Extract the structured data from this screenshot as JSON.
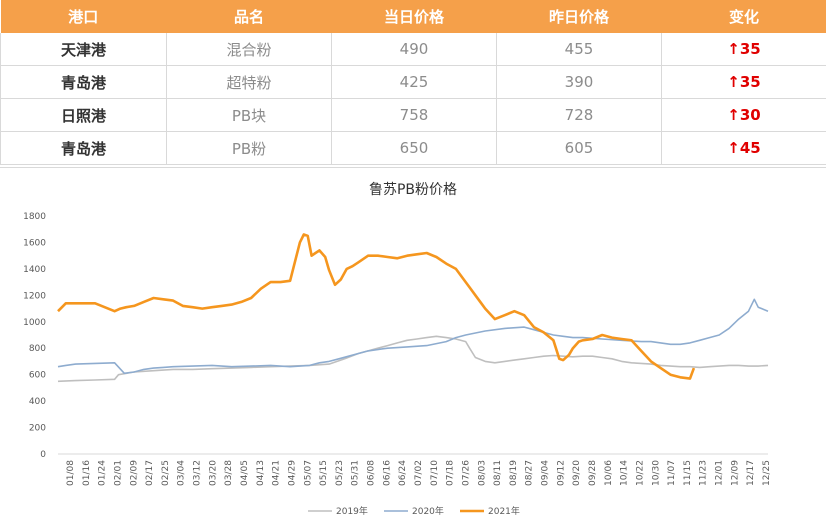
{
  "table": {
    "headers": [
      "港口",
      "品名",
      "当日价格",
      "昨日价格",
      "变化"
    ],
    "rows": [
      {
        "port": "天津港",
        "product": "混合粉",
        "today": "490",
        "yesterday": "455",
        "change": "↑35"
      },
      {
        "port": "青岛港",
        "product": "超特粉",
        "today": "425",
        "yesterday": "390",
        "change": "↑35"
      },
      {
        "port": "日照港",
        "product": "PB块",
        "today": "758",
        "yesterday": "728",
        "change": "↑30"
      },
      {
        "port": "青岛港",
        "product": "PB粉",
        "today": "650",
        "yesterday": "605",
        "change": "↑45"
      }
    ]
  },
  "colors": {
    "header_bg": "#f5a04a",
    "up": "#e00000",
    "s2019": "#bfbfbf",
    "s2020": "#8eaccf",
    "s2021": "#f5961e"
  },
  "chart_data": {
    "type": "line",
    "title": "鲁苏PB粉价格",
    "xlabel": "",
    "ylabel": "",
    "ylim": [
      0,
      1800
    ],
    "yticks": [
      0,
      200,
      400,
      600,
      800,
      1000,
      1200,
      1400,
      1600,
      1800
    ],
    "xlim": [
      1,
      365
    ],
    "xtick_labels": [
      "01/08",
      "01/16",
      "01/24",
      "02/01",
      "02/09",
      "02/17",
      "02/25",
      "03/04",
      "03/12",
      "03/20",
      "03/28",
      "04/05",
      "04/13",
      "04/21",
      "04/29",
      "05/07",
      "05/15",
      "05/23",
      "05/31",
      "06/08",
      "06/16",
      "06/24",
      "07/02",
      "07/10",
      "07/18",
      "07/26",
      "08/03",
      "08/11",
      "08/19",
      "08/27",
      "09/04",
      "09/12",
      "09/20",
      "09/28",
      "10/06",
      "10/14",
      "10/22",
      "10/30",
      "11/07",
      "11/15",
      "11/23",
      "12/01",
      "12/09",
      "12/17",
      "12/25"
    ],
    "x_unit": "day of year",
    "legend": "bottom",
    "series": [
      {
        "name": "2019年",
        "color": "#bfbfbf",
        "x": [
          1,
          10,
          20,
          30,
          32,
          40,
          50,
          60,
          70,
          80,
          90,
          100,
          110,
          120,
          130,
          140,
          148,
          155,
          160,
          165,
          170,
          175,
          180,
          185,
          190,
          195,
          200,
          205,
          210,
          212,
          215,
          220,
          225,
          230,
          235,
          240,
          245,
          250,
          255,
          260,
          265,
          270,
          275,
          280,
          285,
          290,
          295,
          300,
          305,
          310,
          315,
          320,
          325,
          330,
          335,
          340,
          345,
          350,
          355,
          360,
          365
        ],
        "y": [
          550,
          555,
          560,
          565,
          600,
          620,
          630,
          640,
          640,
          645,
          650,
          655,
          660,
          665,
          670,
          680,
          720,
          760,
          780,
          800,
          820,
          840,
          860,
          870,
          880,
          890,
          880,
          870,
          850,
          800,
          730,
          700,
          690,
          700,
          710,
          720,
          730,
          740,
          745,
          740,
          735,
          740,
          740,
          730,
          720,
          700,
          690,
          685,
          680,
          670,
          665,
          660,
          660,
          655,
          660,
          665,
          670,
          670,
          665,
          665,
          670
        ]
      },
      {
        "name": "2020年",
        "color": "#8eaccf",
        "x": [
          1,
          5,
          10,
          20,
          30,
          35,
          40,
          45,
          50,
          55,
          60,
          70,
          80,
          90,
          100,
          110,
          120,
          130,
          135,
          140,
          145,
          150,
          155,
          160,
          170,
          180,
          190,
          200,
          205,
          210,
          220,
          230,
          240,
          245,
          250,
          255,
          260,
          265,
          270,
          280,
          290,
          300,
          305,
          310,
          315,
          320,
          325,
          330,
          335,
          340,
          345,
          350,
          355,
          358,
          360,
          365
        ],
        "y": [
          660,
          670,
          680,
          685,
          690,
          610,
          620,
          640,
          650,
          655,
          660,
          665,
          670,
          660,
          665,
          670,
          660,
          670,
          690,
          700,
          720,
          740,
          760,
          780,
          800,
          810,
          820,
          850,
          880,
          900,
          930,
          950,
          960,
          940,
          920,
          900,
          890,
          880,
          880,
          870,
          860,
          850,
          850,
          840,
          830,
          830,
          840,
          860,
          880,
          900,
          950,
          1020,
          1080,
          1170,
          1110,
          1080
        ]
      },
      {
        "name": "2021年",
        "color": "#f5961e",
        "x": [
          1,
          5,
          10,
          20,
          30,
          33,
          36,
          40,
          45,
          50,
          55,
          60,
          65,
          70,
          75,
          80,
          85,
          90,
          95,
          100,
          105,
          110,
          115,
          120,
          125,
          127,
          129,
          131,
          133,
          135,
          138,
          140,
          143,
          146,
          149,
          152,
          155,
          160,
          165,
          170,
          175,
          180,
          185,
          190,
          195,
          200,
          205,
          210,
          212,
          215,
          218,
          220,
          225,
          230,
          235,
          240,
          245,
          250,
          255,
          258,
          260,
          263,
          265,
          268,
          270,
          275,
          280,
          285,
          290,
          295,
          300,
          305,
          310,
          315,
          320,
          325,
          327
        ],
        "y": [
          1080,
          1140,
          1140,
          1140,
          1080,
          1100,
          1110,
          1120,
          1150,
          1180,
          1170,
          1160,
          1120,
          1110,
          1100,
          1110,
          1120,
          1130,
          1150,
          1180,
          1250,
          1300,
          1300,
          1310,
          1600,
          1660,
          1650,
          1500,
          1520,
          1540,
          1490,
          1390,
          1280,
          1320,
          1400,
          1420,
          1450,
          1500,
          1500,
          1490,
          1480,
          1500,
          1510,
          1520,
          1490,
          1440,
          1400,
          1300,
          1260,
          1200,
          1140,
          1100,
          1020,
          1050,
          1080,
          1050,
          960,
          920,
          860,
          720,
          710,
          750,
          800,
          850,
          860,
          870,
          900,
          880,
          870,
          860,
          780,
          700,
          650,
          600,
          580,
          570,
          650
        ]
      }
    ]
  }
}
